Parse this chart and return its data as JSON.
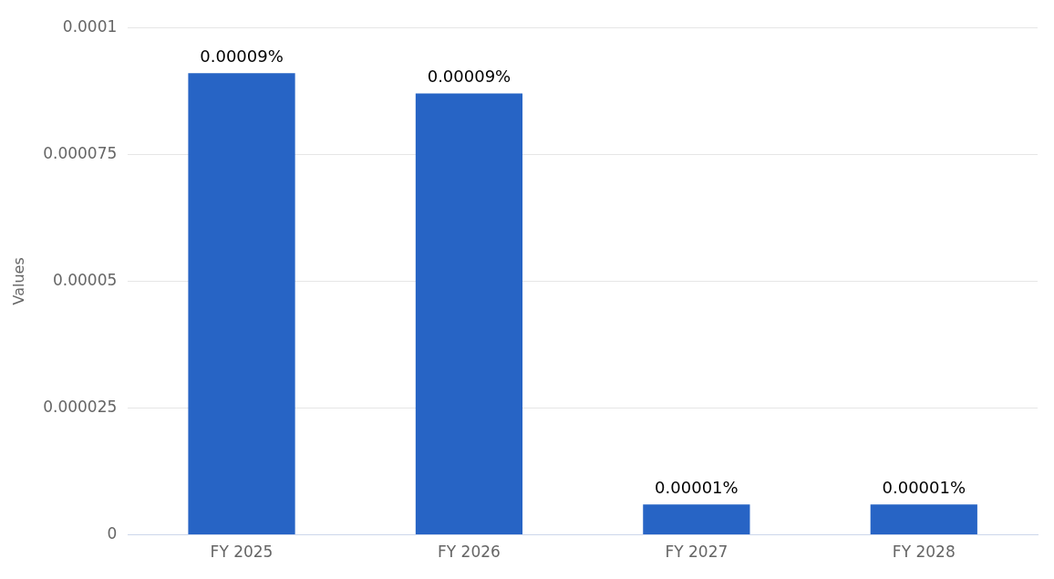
{
  "chart_data": {
    "type": "bar",
    "ylabel": "Values",
    "categories": [
      "FY 2025",
      "FY 2026",
      "FY 2027",
      "FY 2028"
    ],
    "values": [
      9.1e-05,
      8.7e-05,
      6e-06,
      6e-06
    ],
    "value_labels": [
      "0.00009%",
      "0.00009%",
      "0.00001%",
      "0.00001%"
    ],
    "color": "#2764c5",
    "ylim": [
      0,
      0.0001
    ],
    "yticks": [
      0,
      {
        "value": 2.5e-05,
        "label": "0.000025"
      },
      {
        "value": 5e-05,
        "label": "0.00005"
      },
      {
        "value": 7.5e-05,
        "label": "0.000075"
      },
      0.0001
    ],
    "grid": "y",
    "legend": false
  }
}
